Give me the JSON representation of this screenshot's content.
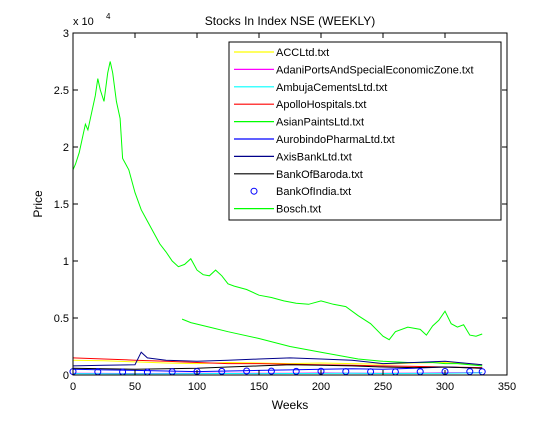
{
  "chart_data": {
    "type": "line",
    "title": "Stocks In Index NSE (WEEKLY)",
    "xlabel": "Weeks",
    "ylabel": "Price",
    "y_exponent_label": "x 10",
    "y_exponent_power": "4",
    "xlim": [
      0,
      350
    ],
    "ylim": [
      0,
      30000
    ],
    "x_ticks": [
      0,
      50,
      100,
      150,
      200,
      250,
      300,
      350
    ],
    "y_ticks": [
      0,
      5000,
      10000,
      15000,
      20000,
      25000,
      30000
    ],
    "x_tick_labels": [
      "0",
      "50",
      "100",
      "150",
      "200",
      "250",
      "300",
      "350"
    ],
    "y_tick_labels": [
      "0",
      "0.5",
      "1",
      "1.5",
      "2",
      "2.5",
      "3"
    ],
    "grid": false,
    "legend_position": "top-right",
    "series": [
      {
        "name": "ACCLtd.txt",
        "color": "#ffff00",
        "marker": "none",
        "x": [
          0,
          25,
          50,
          75,
          100,
          125,
          150,
          175,
          200,
          225,
          250,
          275,
          300,
          330
        ],
        "y": [
          1300,
          1250,
          1150,
          1050,
          1000,
          1100,
          1050,
          1000,
          1050,
          1000,
          950,
          1050,
          1100,
          900
        ]
      },
      {
        "name": "AdaniPortsAndSpecialEconomicZone.txt",
        "color": "#ff00ff",
        "marker": "none",
        "x": [
          0,
          25,
          50,
          75,
          100,
          125,
          150,
          175,
          200,
          225,
          250,
          275,
          300,
          330
        ],
        "y": [
          150,
          140,
          130,
          140,
          150,
          160,
          150,
          160,
          180,
          170,
          160,
          170,
          200,
          220
        ]
      },
      {
        "name": "AmbujaCementsLtd.txt",
        "color": "#00ffff",
        "marker": "none",
        "x": [
          0,
          25,
          50,
          75,
          100,
          125,
          150,
          175,
          200,
          225,
          250,
          275,
          300,
          330
        ],
        "y": [
          120,
          110,
          100,
          110,
          120,
          130,
          120,
          130,
          140,
          150,
          130,
          140,
          160,
          200
        ]
      },
      {
        "name": "ApolloHospitals.txt",
        "color": "#ff0000",
        "marker": "none",
        "x": [
          0,
          25,
          50,
          75,
          100,
          125,
          150,
          175,
          200,
          225,
          250,
          275,
          300,
          330
        ],
        "y": [
          1500,
          1400,
          1300,
          1200,
          1100,
          1000,
          1000,
          950,
          900,
          850,
          800,
          750,
          700,
          650
        ]
      },
      {
        "name": "AsianPaintsLtd.txt",
        "color": "#00ff00",
        "marker": "none",
        "x": [
          88,
          95,
          110,
          125,
          150,
          175,
          200,
          215,
          230,
          250,
          270,
          290,
          300,
          310,
          320,
          330
        ],
        "y": [
          4900,
          4600,
          4200,
          3800,
          3200,
          2500,
          2000,
          1700,
          1400,
          1200,
          1100,
          1100,
          1000,
          1000,
          900,
          800
        ]
      },
      {
        "name": "AurobindoPharmaLtd.txt",
        "color": "#0000ff",
        "marker": "none",
        "x": [
          0,
          25,
          50,
          75,
          100,
          125,
          150,
          175,
          200,
          225,
          250,
          275,
          300,
          330
        ],
        "y": [
          500,
          450,
          400,
          350,
          300,
          350,
          400,
          450,
          500,
          550,
          500,
          600,
          700,
          600
        ]
      },
      {
        "name": "AxisBankLtd.txt",
        "color": "#00008b",
        "marker": "none",
        "x": [
          0,
          25,
          50,
          55,
          60,
          75,
          100,
          125,
          150,
          175,
          200,
          225,
          250,
          275,
          300,
          330
        ],
        "y": [
          800,
          850,
          900,
          2000,
          1500,
          1300,
          1200,
          1300,
          1400,
          1500,
          1400,
          1300,
          1000,
          1100,
          1200,
          900
        ]
      },
      {
        "name": "BankOfBaroda.txt",
        "color": "#000000",
        "marker": "none",
        "x": [
          0,
          25,
          50,
          75,
          100,
          125,
          150,
          175,
          200,
          225,
          250,
          275,
          300,
          330
        ],
        "y": [
          600,
          550,
          500,
          550,
          600,
          700,
          800,
          900,
          850,
          800,
          700,
          650,
          700,
          600
        ]
      },
      {
        "name": "BankOfIndia.txt",
        "color": "#0000ff",
        "marker": "circle",
        "x": [
          0,
          20,
          40,
          60,
          80,
          100,
          120,
          140,
          160,
          180,
          200,
          220,
          240,
          260,
          280,
          300,
          320,
          330
        ],
        "y": [
          300,
          280,
          260,
          250,
          280,
          300,
          320,
          350,
          340,
          320,
          330,
          300,
          280,
          270,
          290,
          310,
          300,
          290
        ]
      },
      {
        "name": "Bosch.txt",
        "color": "#00ff00",
        "marker": "none",
        "x": [
          0,
          2,
          5,
          8,
          10,
          12,
          15,
          18,
          20,
          22,
          25,
          28,
          30,
          32,
          35,
          38,
          40,
          45,
          50,
          55,
          60,
          65,
          70,
          75,
          80,
          85,
          90,
          95,
          100,
          105,
          110,
          115,
          120,
          125,
          130,
          140,
          150,
          160,
          170,
          180,
          190,
          200,
          210,
          220,
          230,
          240,
          250,
          255,
          260,
          270,
          280,
          285,
          290,
          295,
          300,
          305,
          310,
          315,
          320,
          325,
          330
        ],
        "y": [
          18000,
          18500,
          19500,
          21000,
          22000,
          21500,
          23000,
          24500,
          26000,
          25000,
          24000,
          26500,
          27500,
          26500,
          24000,
          22500,
          19000,
          18000,
          16000,
          14500,
          13500,
          12500,
          11500,
          10800,
          10000,
          9500,
          9700,
          10200,
          9200,
          8800,
          8700,
          9200,
          8700,
          8000,
          7800,
          7500,
          7000,
          6800,
          6500,
          6300,
          6200,
          6500,
          6200,
          6000,
          5200,
          4500,
          3400,
          3100,
          3800,
          4200,
          4000,
          3500,
          4300,
          4800,
          5600,
          4500,
          4200,
          4400,
          3500,
          3400,
          3600
        ]
      }
    ]
  }
}
